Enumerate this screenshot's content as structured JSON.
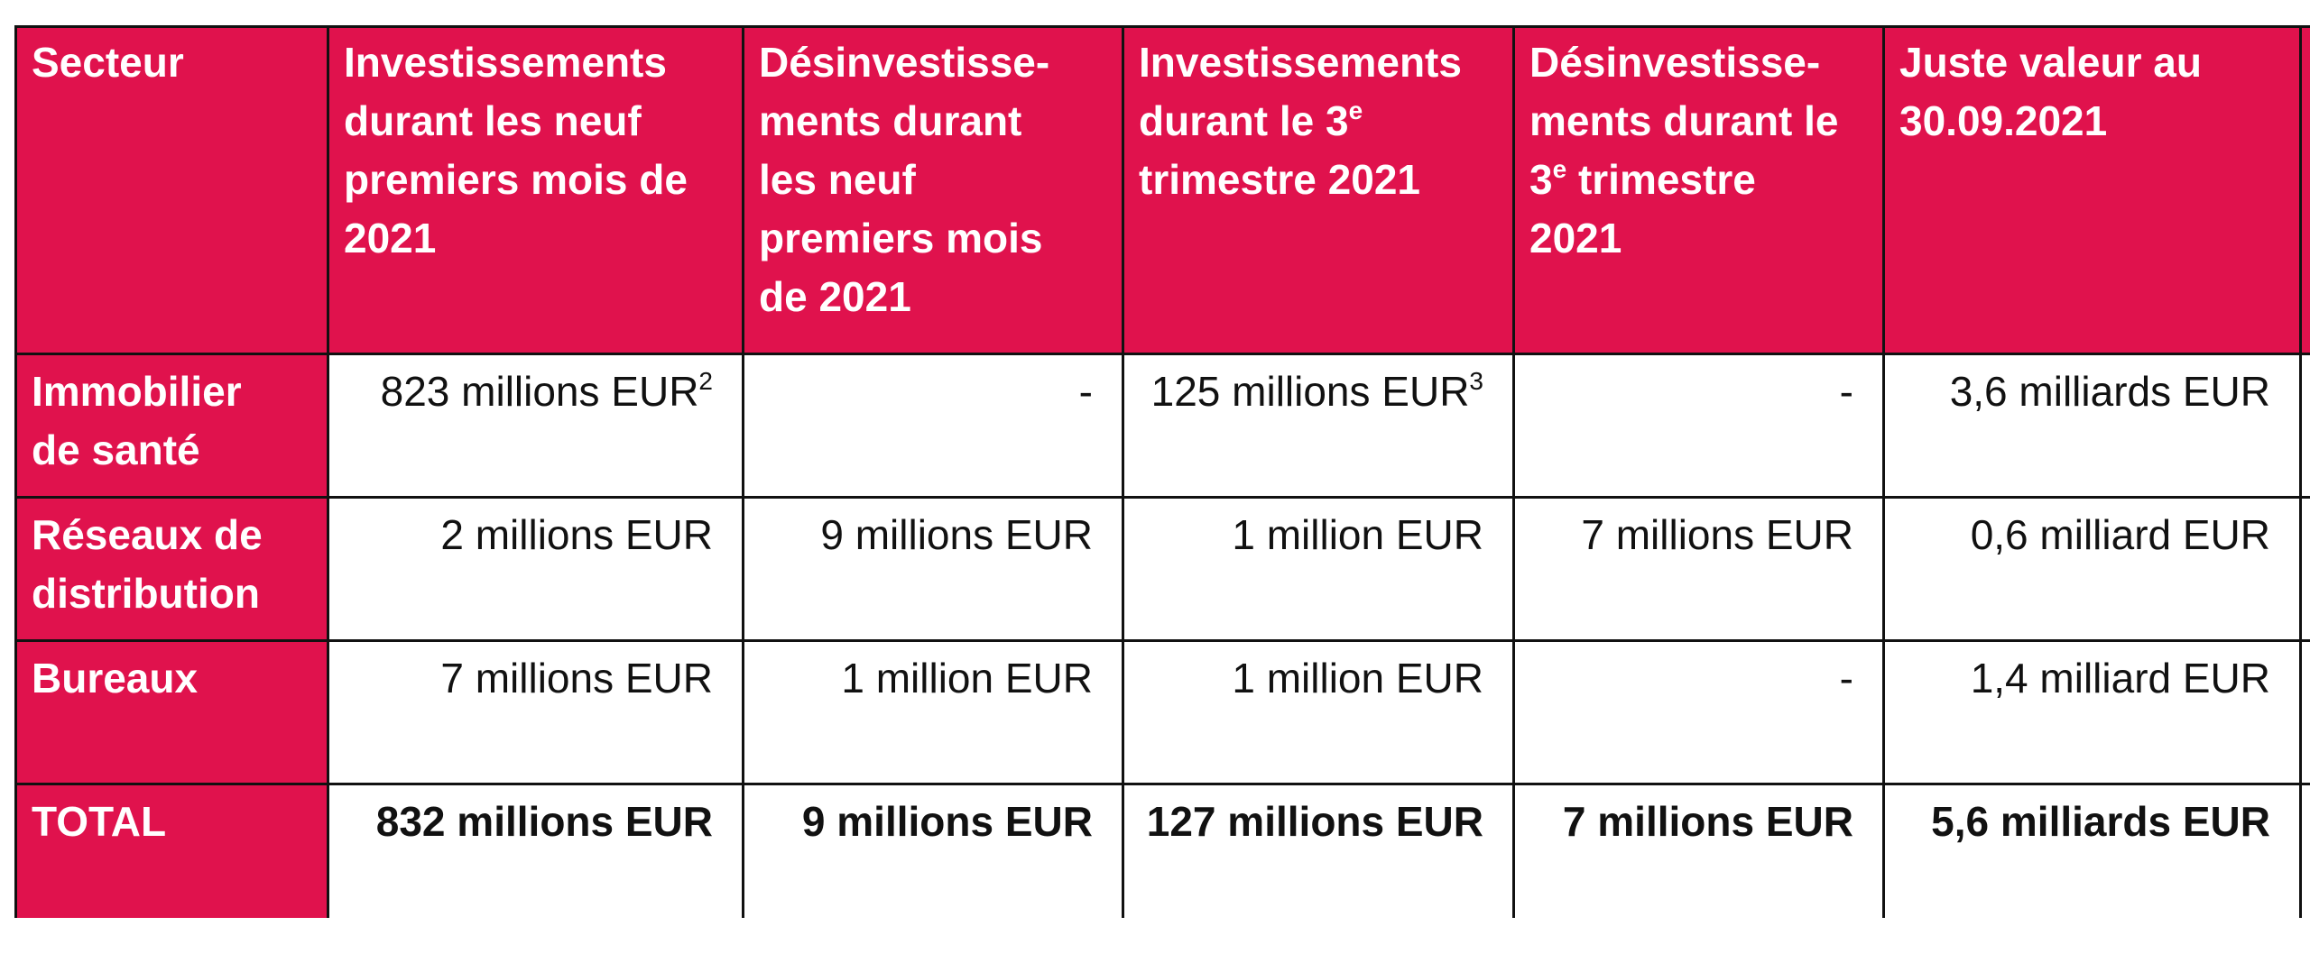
{
  "table": {
    "header": {
      "sector": "Secteur",
      "col1": "Investissements durant les neuf premiers mois de 2021",
      "col2": "Désinvestisse-ments durant les neuf premiers mois de 2021",
      "col3_prefix": "Investissements durant le 3",
      "col3_sup": "e",
      "col3_suffix": " trimestre 2021",
      "col4_prefix": "Désinvestisse-ments durant le 3",
      "col4_sup": "e",
      "col4_suffix": " trimestre 2021",
      "col5": "Juste valeur au 30.09.2021"
    },
    "rows": [
      {
        "sector": "Immobilier de santé",
        "inv_9m": "823 millions EUR",
        "inv_9m_note": "2",
        "desinv_9m": "-",
        "inv_q3": "125 millions EUR",
        "inv_q3_note": "3",
        "desinv_q3": "-",
        "fair_value": "3,6 milliards EUR"
      },
      {
        "sector": "Réseaux de distribution",
        "inv_9m": "2 millions EUR",
        "desinv_9m": "9 millions EUR",
        "inv_q3": "1 million EUR",
        "desinv_q3": "7 millions EUR",
        "fair_value": "0,6 milliard EUR"
      },
      {
        "sector": "Bureaux",
        "inv_9m": "7 millions EUR",
        "desinv_9m": "1 million EUR",
        "inv_q3": "1 million EUR",
        "desinv_q3": "-",
        "fair_value": "1,4 milliard EUR"
      }
    ],
    "total": {
      "sector": "TOTAL",
      "inv_9m": "832 millions EUR",
      "desinv_9m": "9 millions EUR",
      "inv_q3": "127 millions EUR",
      "desinv_q3": "7 millions EUR",
      "fair_value": "5,6 milliards EUR"
    }
  },
  "colors": {
    "header_bg": "#e0124d",
    "header_text": "#ffffff",
    "border": "#111111"
  }
}
